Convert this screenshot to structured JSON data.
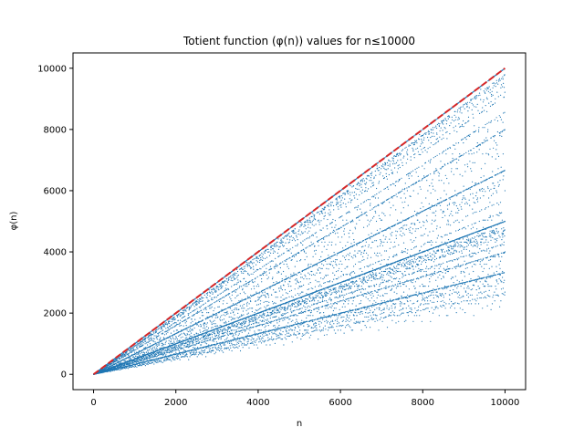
{
  "chart_data": {
    "type": "scatter",
    "title": "Totient function (φ(n)) values for n≤10000",
    "xlabel": "n",
    "ylabel": "φ(n)",
    "xlim": [
      -500,
      10500
    ],
    "ylim": [
      -500,
      10500
    ],
    "x_ticks": [
      0,
      2000,
      4000,
      6000,
      8000,
      10000
    ],
    "y_ticks": [
      0,
      2000,
      4000,
      6000,
      8000,
      10000
    ],
    "x_tick_labels": [
      "0",
      "2000",
      "4000",
      "6000",
      "8000",
      "10000"
    ],
    "y_tick_labels": [
      "0",
      "2000",
      "4000",
      "6000",
      "8000",
      "10000"
    ],
    "n_max": 10000,
    "grid": false,
    "legend": "none",
    "series": [
      {
        "kind": "scatter",
        "formula": "phi(n) for n = 1..10000",
        "color": "#1f77b4"
      },
      {
        "kind": "line",
        "formula": "y = x",
        "x": [
          0,
          10000
        ],
        "y": [
          0,
          10000
        ],
        "style": "dashed",
        "color": "#d62728"
      }
    ]
  }
}
